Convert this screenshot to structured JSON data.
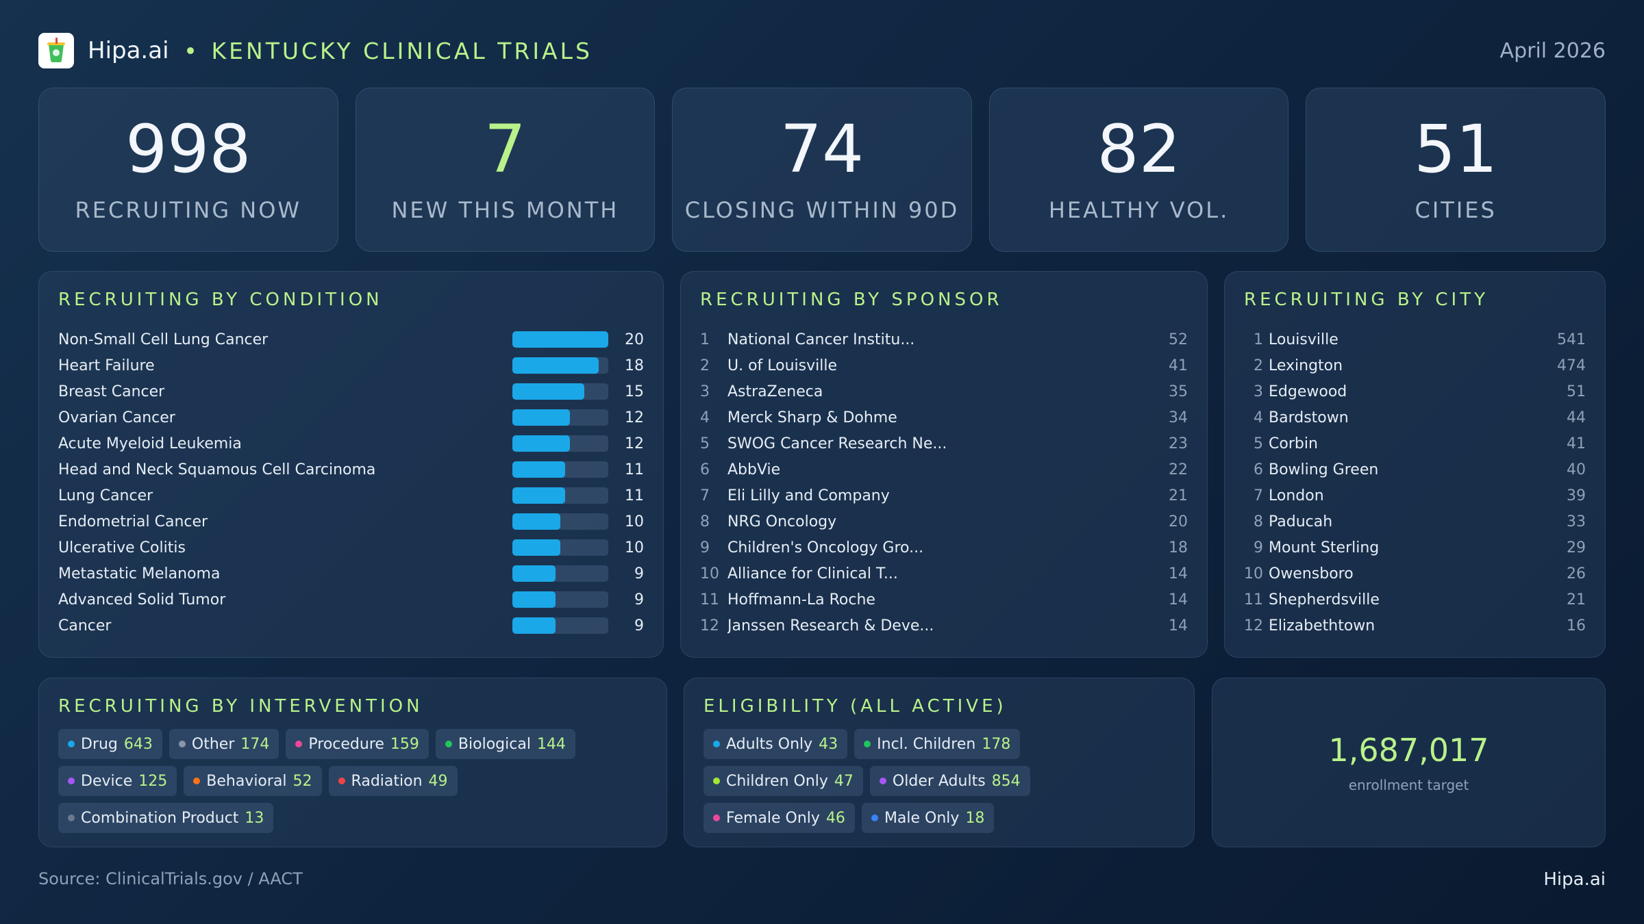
{
  "header": {
    "brand": "Hipa.ai",
    "title": "KENTUCKY CLINICAL TRIALS",
    "date": "April 2026"
  },
  "stats": [
    {
      "value": "998",
      "label": "RECRUITING NOW"
    },
    {
      "value": "7",
      "label": "NEW THIS MONTH"
    },
    {
      "value": "74",
      "label": "CLOSING WITHIN 90D"
    },
    {
      "value": "82",
      "label": "HEALTHY VOL."
    },
    {
      "value": "51",
      "label": "CITIES"
    }
  ],
  "colors": {
    "accent": "#b9f28a",
    "bar": "#1aa8e8"
  },
  "conditions": {
    "title": "RECRUITING BY CONDITION",
    "max": 20,
    "items": [
      {
        "name": "Non-Small Cell Lung Cancer",
        "value": 20
      },
      {
        "name": "Heart Failure",
        "value": 18
      },
      {
        "name": "Breast Cancer",
        "value": 15
      },
      {
        "name": "Ovarian Cancer",
        "value": 12
      },
      {
        "name": "Acute Myeloid Leukemia",
        "value": 12
      },
      {
        "name": "Head and Neck Squamous Cell Carcinoma",
        "value": 11
      },
      {
        "name": "Lung Cancer",
        "value": 11
      },
      {
        "name": "Endometrial Cancer",
        "value": 10
      },
      {
        "name": "Ulcerative Colitis",
        "value": 10
      },
      {
        "name": "Metastatic Melanoma",
        "value": 9
      },
      {
        "name": "Advanced Solid Tumor",
        "value": 9
      },
      {
        "name": "Cancer",
        "value": 9
      }
    ]
  },
  "sponsors": {
    "title": "RECRUITING BY SPONSOR",
    "items": [
      {
        "rank": "1",
        "name": "National Cancer Institu...",
        "value": "52"
      },
      {
        "rank": "2",
        "name": "U. of Louisville",
        "value": "41"
      },
      {
        "rank": "3",
        "name": "AstraZeneca",
        "value": "35"
      },
      {
        "rank": "4",
        "name": "Merck Sharp & Dohme",
        "value": "34"
      },
      {
        "rank": "5",
        "name": "SWOG Cancer Research Ne...",
        "value": "23"
      },
      {
        "rank": "6",
        "name": "AbbVie",
        "value": "22"
      },
      {
        "rank": "7",
        "name": "Eli Lilly and Company",
        "value": "21"
      },
      {
        "rank": "8",
        "name": "NRG Oncology",
        "value": "20"
      },
      {
        "rank": "9",
        "name": "Children's Oncology Gro...",
        "value": "18"
      },
      {
        "rank": "10",
        "name": "Alliance for Clinical T...",
        "value": "14"
      },
      {
        "rank": "11",
        "name": "Hoffmann-La Roche",
        "value": "14"
      },
      {
        "rank": "12",
        "name": "Janssen Research & Deve...",
        "value": "14"
      }
    ]
  },
  "cities": {
    "title": "RECRUITING BY CITY",
    "items": [
      {
        "rank": "1",
        "name": "Louisville",
        "value": "541"
      },
      {
        "rank": "2",
        "name": "Lexington",
        "value": "474"
      },
      {
        "rank": "3",
        "name": "Edgewood",
        "value": "51"
      },
      {
        "rank": "4",
        "name": "Bardstown",
        "value": "44"
      },
      {
        "rank": "5",
        "name": "Corbin",
        "value": "41"
      },
      {
        "rank": "6",
        "name": "Bowling Green",
        "value": "40"
      },
      {
        "rank": "7",
        "name": "London",
        "value": "39"
      },
      {
        "rank": "8",
        "name": "Paducah",
        "value": "33"
      },
      {
        "rank": "9",
        "name": "Mount Sterling",
        "value": "29"
      },
      {
        "rank": "10",
        "name": "Owensboro",
        "value": "26"
      },
      {
        "rank": "11",
        "name": "Shepherdsville",
        "value": "21"
      },
      {
        "rank": "12",
        "name": "Elizabethtown",
        "value": "16"
      }
    ]
  },
  "interventions": {
    "title": "RECRUITING BY INTERVENTION",
    "items": [
      {
        "label": "Drug",
        "count": "643",
        "color": "#1aa8e8"
      },
      {
        "label": "Other",
        "count": "174",
        "color": "#8a97a8"
      },
      {
        "label": "Procedure",
        "count": "159",
        "color": "#ec4899"
      },
      {
        "label": "Biological",
        "count": "144",
        "color": "#22c55e"
      },
      {
        "label": "Device",
        "count": "125",
        "color": "#a855f7"
      },
      {
        "label": "Behavioral",
        "count": "52",
        "color": "#f97316"
      },
      {
        "label": "Radiation",
        "count": "49",
        "color": "#ef4444"
      },
      {
        "label": "Combination Product",
        "count": "13",
        "color": "#6b7a8c"
      }
    ]
  },
  "eligibility": {
    "title": "ELIGIBILITY (ALL ACTIVE)",
    "items": [
      {
        "label": "Adults Only",
        "count": "43",
        "color": "#1aa8e8"
      },
      {
        "label": "Incl. Children",
        "count": "178",
        "color": "#22c55e"
      },
      {
        "label": "Children Only",
        "count": "47",
        "color": "#a3e635"
      },
      {
        "label": "Older Adults",
        "count": "854",
        "color": "#a855f7"
      },
      {
        "label": "Female Only",
        "count": "46",
        "color": "#ec4899"
      },
      {
        "label": "Male Only",
        "count": "18",
        "color": "#3b82f6"
      }
    ]
  },
  "enrollment": {
    "value": "1,687,017",
    "label": "enrollment target"
  },
  "footer": {
    "source": "Source: ClinicalTrials.gov / AACT",
    "brand": "Hipa.ai"
  }
}
